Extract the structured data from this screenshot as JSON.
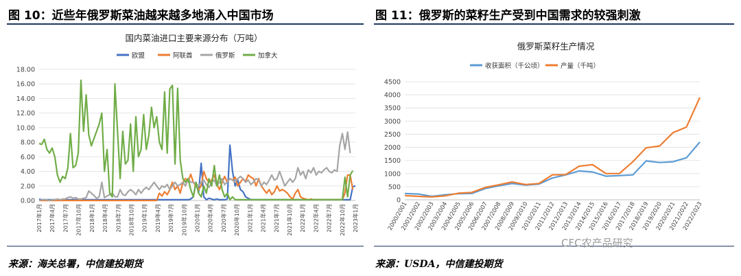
{
  "left": {
    "figure_title": "图 10：近些年俄罗斯菜油越来越多地涌入中国市场",
    "source": "来源：海关总署，中信建投期货"
  },
  "right": {
    "figure_title": "图 11：俄罗斯的菜籽生产受到中国需求的较强刺激",
    "source": "来源：USDA，中信建投期货"
  },
  "watermark": "CFC农产品研究",
  "chart_data": [
    {
      "type": "line",
      "title": "国内菜油进口主要来源分布（万吨）",
      "legend_position": "top",
      "grid": true,
      "ylim": [
        0,
        18
      ],
      "y_ticks": [
        "0.00",
        "2.00",
        "4.00",
        "6.00",
        "8.00",
        "10.00",
        "12.00",
        "14.00",
        "16.00",
        "18.00"
      ],
      "x_tick_labels": [
        "2017年1月",
        "2017年4月",
        "2017年7月",
        "2017年10月",
        "2018年1月",
        "2018年4月",
        "2018年7月",
        "2018年10月",
        "2019年1月",
        "2019年4月",
        "2019年7月",
        "2019年10月",
        "2020年1月",
        "2020年4月",
        "2020年7月",
        "2020年10月",
        "2021年1月",
        "2021年4月",
        "2021年7月",
        "2021年10月",
        "2022年1月",
        "2022年4月",
        "2022年7月",
        "2022年10月",
        "2023年1月"
      ],
      "series": [
        {
          "name": "欧盟",
          "color": "#4472c4",
          "values": [
            0.2,
            0.1,
            0.1,
            0.1,
            0.1,
            0.1,
            0.1,
            0.1,
            0.1,
            0.1,
            0.1,
            0.1,
            0.1,
            0.1,
            0.1,
            0.1,
            0.1,
            0.1,
            0.1,
            0.1,
            0.1,
            0.1,
            0.1,
            0.1,
            0.1,
            0.1,
            0.1,
            0.1,
            0.1,
            0.1,
            0.1,
            0.1,
            0.1,
            0.1,
            0.1,
            0.1,
            0.1,
            0.1,
            0.1,
            0.1,
            0.1,
            0.1,
            0.1,
            0.1,
            0.1,
            0.1,
            0.1,
            0.1,
            0.1,
            0.1,
            0.1,
            0.1,
            0.1,
            0.1,
            0.1,
            0.1,
            0.1,
            0.1,
            0.2,
            0.5,
            2.5,
            1.0,
            5.1,
            0.5,
            0.1,
            0.3,
            0.2,
            0.1,
            0.2,
            0.1,
            0.1,
            0.1,
            0.2,
            7.6,
            4.0,
            2.0,
            2.8,
            1.5,
            1.2,
            0.5,
            0.3,
            0.1,
            0.1,
            0.1,
            0.1,
            0.1,
            0.1,
            0.1,
            0.1,
            0.1,
            0.1,
            0.1,
            0.1,
            0.1,
            0.1,
            0.1,
            0.1,
            0.1,
            0.1,
            0.1,
            0.1,
            0.1,
            0.1,
            0.1,
            0.1,
            0.1,
            0.1,
            0.1,
            0.1,
            0.1,
            0.1,
            0.1,
            0.1,
            0.1,
            0.1,
            0.1,
            0.1,
            0.1,
            0.1,
            0.1,
            1.9,
            2.0
          ]
        },
        {
          "name": "阿联酋",
          "color": "#ed7d31",
          "values": [
            0.0,
            0.0,
            0.0,
            0.0,
            0.0,
            0.0,
            0.0,
            0.0,
            0.0,
            0.0,
            0.0,
            0.0,
            0.0,
            0.0,
            0.0,
            0.0,
            0.0,
            0.0,
            0.0,
            0.0,
            0.0,
            0.0,
            0.0,
            0.0,
            0.0,
            0.0,
            0.0,
            0.0,
            0.0,
            0.0,
            0.0,
            0.0,
            0.0,
            0.0,
            0.0,
            0.0,
            0.0,
            0.0,
            0.0,
            0.0,
            0.0,
            0.0,
            0.0,
            0.0,
            0.0,
            0.0,
            1.0,
            0.6,
            1.2,
            0.8,
            1.5,
            2.5,
            1.5,
            2.0,
            1.0,
            2.5,
            3.0,
            2.6,
            3.6,
            2.5,
            2.0,
            1.5,
            2.0,
            4.0,
            3.0,
            2.5,
            2.8,
            3.5,
            2.2,
            1.5,
            2.5,
            3.3,
            2.5,
            3.0,
            2.8,
            3.2,
            2.0,
            2.5,
            3.0,
            2.6,
            3.5,
            3.2,
            3.0,
            2.0,
            3.0,
            2.0,
            1.5,
            1.0,
            1.5,
            0.8,
            1.2,
            2.0,
            1.3,
            1.5,
            1.3,
            1.0,
            0.5,
            0.2,
            1.0,
            1.5,
            0.5,
            0.3,
            0.2,
            0.1,
            0.2,
            0.1,
            0.1,
            0.1,
            0.1,
            0.1,
            0.1,
            0.1,
            0.1,
            0.1,
            0.1,
            0.1,
            0.1,
            1.0,
            3.5,
            3.5,
            1.5
          ]
        },
        {
          "name": "俄罗斯",
          "color": "#a5a5a5",
          "values": [
            0.0,
            0.1,
            0.1,
            0.1,
            0.0,
            0.1,
            0.1,
            0.2,
            0.1,
            0.2,
            0.2,
            0.4,
            0.5,
            0.3,
            0.4,
            0.2,
            0.2,
            0.3,
            0.4,
            1.3,
            1.0,
            0.7,
            0.3,
            0.5,
            2.5,
            0.4,
            0.6,
            0.8,
            1.0,
            0.5,
            0.5,
            1.5,
            0.8,
            0.7,
            1.2,
            1.5,
            1.2,
            0.8,
            1.5,
            1.0,
            1.5,
            1.8,
            1.5,
            2.0,
            2.5,
            2.0,
            1.5,
            2.0,
            1.8,
            2.2,
            1.5,
            2.0,
            2.5,
            2.0,
            2.2,
            2.5,
            2.0,
            3.0,
            2.5,
            2.5,
            2.3,
            2.0,
            2.5,
            2.8,
            2.2,
            1.8,
            2.5,
            2.8,
            2.0,
            2.5,
            3.0,
            2.2,
            2.5,
            3.0,
            2.8,
            2.5,
            3.0,
            3.3,
            3.0,
            2.5,
            2.8,
            2.2,
            2.5,
            3.0,
            2.8,
            2.0,
            2.5,
            2.2,
            2.8,
            3.5,
            2.8,
            3.0,
            4.0,
            3.0,
            2.0,
            2.5,
            3.0,
            2.5,
            3.0,
            4.5,
            3.5,
            4.0,
            3.0,
            4.2,
            3.8,
            4.5,
            3.5,
            4.0,
            3.8,
            4.2,
            4.5,
            4.0,
            3.8,
            4.2,
            4.0,
            7.5,
            9.2,
            7.0,
            9.4,
            6.5
          ]
        },
        {
          "name": "加拿大",
          "color": "#70ad47",
          "values": [
            7.8,
            7.7,
            8.4,
            7.0,
            6.5,
            7.2,
            6.0,
            3.5,
            2.5,
            3.3,
            3.0,
            4.5,
            9.2,
            4.5,
            4.8,
            6.5,
            16.5,
            9.5,
            14.5,
            9.0,
            7.5,
            8.5,
            9.5,
            10.5,
            12.0,
            4.0,
            7.0,
            1.0,
            0.5,
            16.0,
            9.5,
            3.0,
            9.5,
            5.0,
            5.5,
            10.5,
            4.0,
            11.5,
            6.0,
            7.0,
            11.8,
            7.0,
            9.0,
            12.8,
            10.0,
            11.5,
            8.0,
            7.0,
            14.9,
            6.5,
            15.3,
            15.8,
            5.0,
            15.4,
            5.5,
            3.0,
            2.5,
            3.0,
            1.5,
            0.5,
            2.5,
            1.0,
            0.5,
            2.0,
            1.0,
            3.0,
            2.0,
            4.8,
            2.0,
            3.5,
            1.5,
            0.5,
            1.0,
            0.1,
            0.5,
            0.1,
            0.1,
            0.1,
            0.1,
            0.1,
            0.1,
            0.1,
            0.1,
            0.1,
            0.1,
            0.1,
            0.1,
            0.1,
            0.1,
            0.1,
            0.1,
            0.1,
            0.1,
            0.1,
            0.1,
            0.1,
            0.1,
            0.1,
            0.1,
            0.1,
            0.1,
            0.1,
            0.1,
            0.1,
            0.1,
            0.1,
            0.1,
            0.1,
            0.1,
            0.1,
            0.1,
            0.1,
            0.1,
            0.1,
            0.1,
            0.1,
            0.1,
            3.2,
            0.5,
            3.5,
            4.1
          ]
        }
      ]
    },
    {
      "type": "line",
      "title": "俄罗斯菜籽生产情况",
      "legend_position": "top",
      "grid": true,
      "ylim": [
        0,
        4500
      ],
      "y_ticks": [
        "0",
        "500",
        "1000",
        "1500",
        "2000",
        "2500",
        "3000",
        "3500",
        "4000",
        "4500"
      ],
      "categories": [
        "2000/2001",
        "2001/2002",
        "2002/2003",
        "2003/2004",
        "2004/2005",
        "2005/2006",
        "2006/2007",
        "2007/2008",
        "2008/2009",
        "2009/2010",
        "2010/2011",
        "2011/2012",
        "2012/2013",
        "2013/2014",
        "2014/2015",
        "2015/2016",
        "2016/2017",
        "2017/2018",
        "2018/2019",
        "2019/2020",
        "2020/2021",
        "2021/2022",
        "2022/2023"
      ],
      "series": [
        {
          "name": "收获面积（千公顷）",
          "color": "#5b9bd5",
          "values": [
            240,
            220,
            130,
            190,
            230,
            240,
            430,
            530,
            620,
            560,
            600,
            830,
            950,
            1100,
            1060,
            900,
            920,
            950,
            1480,
            1420,
            1450,
            1600,
            2200
          ]
        },
        {
          "name": "产量（千吨）",
          "color": "#ed7d31",
          "values": [
            160,
            130,
            110,
            150,
            250,
            280,
            470,
            570,
            680,
            580,
            620,
            950,
            960,
            1280,
            1340,
            1000,
            1000,
            1450,
            1980,
            2050,
            2560,
            2770,
            3900
          ]
        }
      ]
    }
  ]
}
